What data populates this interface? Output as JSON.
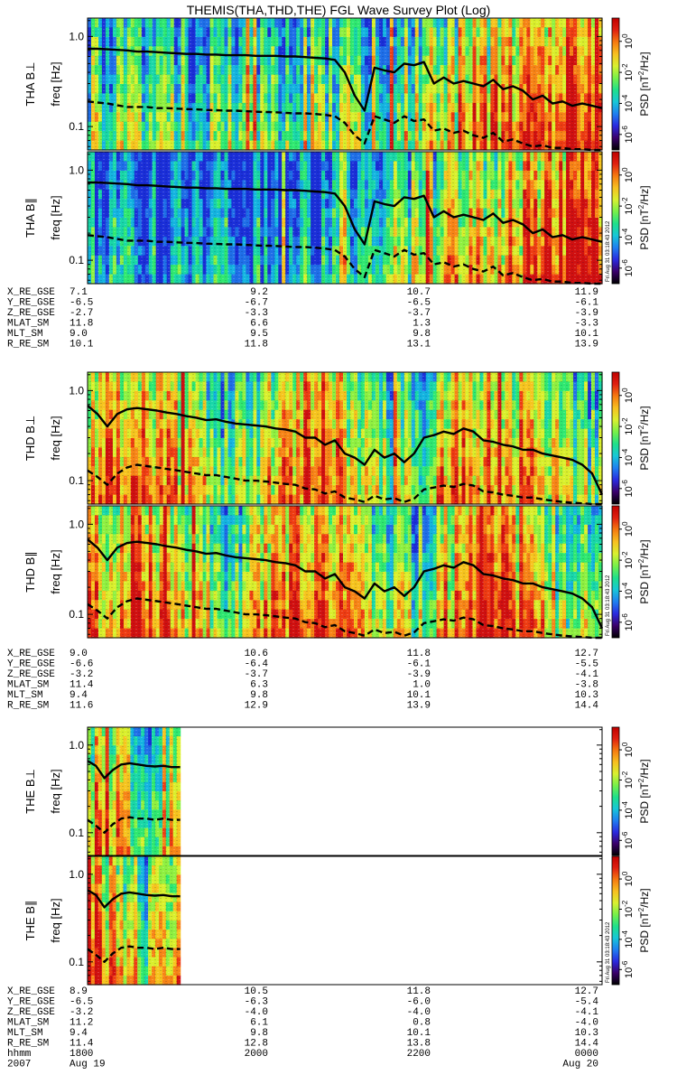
{
  "title": "THEMIS(THA,THD,THE) FGL Wave Survey Plot (Log)",
  "colors": {
    "background": "#ffffff",
    "axis": "#000000",
    "trace": "#000000"
  },
  "colorbar": {
    "label_prefix": "PSD",
    "label_units": "[nT",
    "label_exp": "2",
    "label_suffix": "/Hz]",
    "ticks": [
      {
        "base": "10",
        "exp": "0"
      },
      {
        "base": "10",
        "exp": "-2"
      },
      {
        "base": "10",
        "exp": "-4"
      },
      {
        "base": "10",
        "exp": "-6"
      }
    ],
    "tick_log_values": [
      0,
      -2,
      -4,
      -6
    ],
    "range_log": [
      -7,
      1.5
    ],
    "gradient": [
      "#000000",
      "#3a006a",
      "#2a2adf",
      "#1f7ff0",
      "#17c7d8",
      "#1fe08a",
      "#76f04a",
      "#d8f030",
      "#f7c020",
      "#f57a10",
      "#e02010",
      "#c00000"
    ]
  },
  "stamp": "Fri Aug 31 03:18:43 2012",
  "freq_axis": {
    "label": "freq [Hz]",
    "ticks": [
      "1.0",
      "0.1"
    ],
    "tick_values": [
      1.0,
      0.1
    ],
    "range": [
      0.055,
      1.6
    ]
  },
  "panels": [
    {
      "probe_label": "THA B⊥",
      "probe": "THA",
      "component": "perp",
      "coverage": 1.0
    },
    {
      "probe_label": "THA B∥",
      "probe": "THA",
      "component": "para",
      "coverage": 1.0
    },
    {
      "probe_label": "THD B⊥",
      "probe": "THD",
      "component": "perp",
      "coverage": 1.0
    },
    {
      "probe_label": "THD B∥",
      "probe": "THD",
      "component": "para",
      "coverage": 1.0
    },
    {
      "probe_label": "THE B⊥",
      "probe": "THE",
      "component": "perp",
      "coverage": 0.18
    },
    {
      "probe_label": "THE B∥",
      "probe": "THE",
      "component": "para",
      "coverage": 0.18
    }
  ],
  "ephemeris": [
    {
      "rows": [
        {
          "label": "X_RE_GSE",
          "values": [
            "7.1",
            "9.2",
            "10.7",
            "11.9"
          ]
        },
        {
          "label": "Y_RE_GSE",
          "values": [
            "-6.5",
            "-6.7",
            "-6.5",
            "-6.1"
          ]
        },
        {
          "label": "Z_RE_GSE",
          "values": [
            "-2.7",
            "-3.3",
            "-3.7",
            "-3.9"
          ]
        },
        {
          "label": "MLAT_SM",
          "values": [
            "11.8",
            "6.6",
            "1.3",
            "-3.3"
          ]
        },
        {
          "label": "MLT_SM",
          "values": [
            "9.0",
            "9.5",
            "9.8",
            "10.1"
          ]
        },
        {
          "label": "R_RE_SM",
          "values": [
            "10.1",
            "11.8",
            "13.1",
            "13.9"
          ]
        }
      ]
    },
    {
      "rows": [
        {
          "label": "X_RE_GSE",
          "values": [
            "9.0",
            "10.6",
            "11.8",
            "12.7"
          ]
        },
        {
          "label": "Y_RE_GSE",
          "values": [
            "-6.6",
            "-6.4",
            "-6.1",
            "-5.5"
          ]
        },
        {
          "label": "Z_RE_GSE",
          "values": [
            "-3.2",
            "-3.7",
            "-3.9",
            "-4.1"
          ]
        },
        {
          "label": "MLAT_SM",
          "values": [
            "11.4",
            "6.3",
            "1.0",
            "-3.8"
          ]
        },
        {
          "label": "MLT_SM",
          "values": [
            "9.4",
            "9.8",
            "10.1",
            "10.3"
          ]
        },
        {
          "label": "R_RE_SM",
          "values": [
            "11.6",
            "12.9",
            "13.9",
            "14.4"
          ]
        }
      ]
    },
    {
      "rows": [
        {
          "label": "X_RE_GSE",
          "values": [
            "8.9",
            "10.5",
            "11.8",
            "12.7"
          ]
        },
        {
          "label": "Y_RE_GSE",
          "values": [
            "-6.5",
            "-6.3",
            "-6.0",
            "-5.4"
          ]
        },
        {
          "label": "Z_RE_GSE",
          "values": [
            "-3.2",
            "-4.0",
            "-4.0",
            "-4.1"
          ]
        },
        {
          "label": "MLAT_SM",
          "values": [
            "11.2",
            "6.1",
            "0.8",
            "-4.0"
          ]
        },
        {
          "label": "MLT_SM",
          "values": [
            "9.4",
            "9.8",
            "10.1",
            "10.3"
          ]
        },
        {
          "label": "R_RE_SM",
          "values": [
            "11.4",
            "12.8",
            "13.8",
            "14.4"
          ]
        },
        {
          "label": "hhmm",
          "values": [
            "1800",
            "2000",
            "2200",
            "0000"
          ]
        }
      ],
      "date_row": {
        "year": "2007",
        "start": "Aug 19",
        "end": "Aug 20"
      }
    }
  ],
  "chart_data": {
    "type": "heatmap",
    "title": "THEMIS(THA,THD,THE) FGL Wave Survey Plot (Log)",
    "ylabel": "freq [Hz]",
    "yscale": "log",
    "ylim": [
      0.055,
      1.6
    ],
    "xlabel": "hhmm",
    "x_ticks": [
      "1800",
      "2000",
      "2200",
      "0000"
    ],
    "x_range_hours": [
      18,
      24
    ],
    "colorbar_label": "PSD [nT^2/Hz]",
    "colorbar_ticks": [
      "10^0",
      "10^-2",
      "10^-4",
      "10^-6"
    ],
    "series": [
      {
        "name": "fce_solid",
        "style": "solid"
      },
      {
        "name": "fce_dashed",
        "style": "dashed"
      }
    ],
    "traces": {
      "THA": {
        "solid": [
          0.73,
          0.73,
          0.72,
          0.71,
          0.7,
          0.68,
          0.68,
          0.67,
          0.66,
          0.65,
          0.64,
          0.64,
          0.63,
          0.63,
          0.62,
          0.62,
          0.62,
          0.61,
          0.61,
          0.61,
          0.6,
          0.6,
          0.59,
          0.58,
          0.57,
          0.55,
          0.4,
          0.22,
          0.15,
          0.45,
          0.42,
          0.4,
          0.5,
          0.48,
          0.52,
          0.3,
          0.35,
          0.3,
          0.32,
          0.3,
          0.28,
          0.33,
          0.26,
          0.28,
          0.25,
          0.2,
          0.22,
          0.18,
          0.19,
          0.17,
          0.18,
          0.17,
          0.16
        ],
        "dashed": [
          0.19,
          0.185,
          0.18,
          0.172,
          0.165,
          0.165,
          0.165,
          0.16,
          0.16,
          0.158,
          0.156,
          0.155,
          0.153,
          0.152,
          0.15,
          0.15,
          0.148,
          0.146,
          0.145,
          0.144,
          0.142,
          0.14,
          0.14,
          0.138,
          0.135,
          0.13,
          0.11,
          0.08,
          0.065,
          0.13,
          0.12,
          0.11,
          0.13,
          0.115,
          0.12,
          0.09,
          0.095,
          0.085,
          0.09,
          0.08,
          0.075,
          0.085,
          0.068,
          0.072,
          0.065,
          0.06,
          0.062,
          0.058,
          0.058,
          0.056,
          0.056,
          0.055,
          0.055
        ]
      },
      "THD": {
        "solid": [
          0.68,
          0.55,
          0.4,
          0.55,
          0.62,
          0.64,
          0.62,
          0.6,
          0.57,
          0.55,
          0.52,
          0.5,
          0.47,
          0.48,
          0.45,
          0.43,
          0.42,
          0.41,
          0.4,
          0.38,
          0.37,
          0.35,
          0.3,
          0.3,
          0.25,
          0.28,
          0.2,
          0.18,
          0.15,
          0.22,
          0.18,
          0.2,
          0.16,
          0.2,
          0.3,
          0.32,
          0.35,
          0.33,
          0.38,
          0.35,
          0.28,
          0.27,
          0.25,
          0.24,
          0.22,
          0.22,
          0.2,
          0.19,
          0.18,
          0.17,
          0.15,
          0.12,
          0.07
        ],
        "dashed": [
          0.13,
          0.11,
          0.09,
          0.12,
          0.14,
          0.15,
          0.145,
          0.14,
          0.135,
          0.13,
          0.125,
          0.12,
          0.115,
          0.115,
          0.11,
          0.105,
          0.1,
          0.1,
          0.098,
          0.095,
          0.092,
          0.09,
          0.082,
          0.08,
          0.072,
          0.076,
          0.065,
          0.062,
          0.058,
          0.068,
          0.062,
          0.064,
          0.058,
          0.063,
          0.08,
          0.084,
          0.088,
          0.085,
          0.092,
          0.088,
          0.076,
          0.074,
          0.07,
          0.068,
          0.065,
          0.065,
          0.062,
          0.06,
          0.058,
          0.057,
          0.056,
          0.055,
          0.055
        ]
      },
      "THE": {
        "solid": [
          0.66,
          0.58,
          0.42,
          0.52,
          0.6,
          0.62,
          0.6,
          0.58,
          0.57,
          0.58,
          0.56,
          0.56
        ],
        "dashed": [
          0.14,
          0.12,
          0.1,
          0.125,
          0.145,
          0.15,
          0.145,
          0.145,
          0.14,
          0.145,
          0.14,
          0.14
        ]
      }
    }
  }
}
